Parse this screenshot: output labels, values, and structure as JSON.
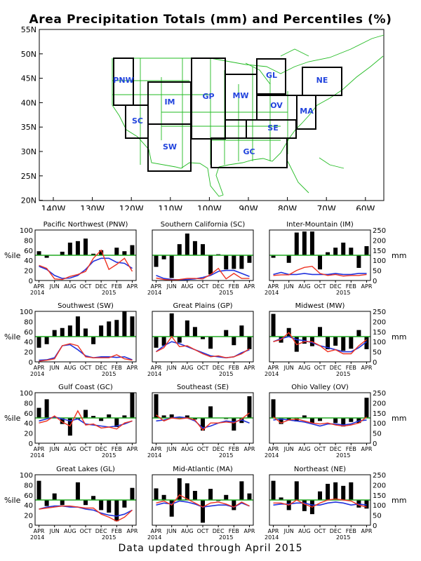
{
  "title": "Area Precipitation Totals (mm) and Percentiles (%)",
  "footer": "Data updated through April 2015",
  "map": {
    "lat_labels": [
      "55N",
      "50N",
      "45N",
      "40N",
      "35N",
      "30N",
      "25N",
      "20N"
    ],
    "lon_labels": [
      "140W",
      "130W",
      "120W",
      "110W",
      "100W",
      "90W",
      "80W",
      "70W",
      "60W"
    ],
    "region_labels": [
      "PNW",
      "SC",
      "IM",
      "SW",
      "GP",
      "MW",
      "GL",
      "OV",
      "SE",
      "GC",
      "NE",
      "MA"
    ],
    "label_color": "#2244dd",
    "outline_color": "#22bb22"
  },
  "chart_axes": {
    "left_label": "%ile",
    "right_label": "mm",
    "left_ticks": [
      "100",
      "80",
      "60",
      "40",
      "20",
      "0"
    ],
    "right_ticks": [
      "250",
      "200",
      "150",
      "100",
      "50",
      "0"
    ],
    "month_labels": [
      "APR",
      "JUN",
      "AUG",
      "OCT",
      "DEC",
      "FEB",
      "APR"
    ],
    "year_start": "2014",
    "year_mid": "2015"
  },
  "chart_data": [
    {
      "type": "bar",
      "title": "Pacific Northwest (PNW)",
      "ylim": [
        0,
        100
      ],
      "y2lim": [
        0,
        250
      ],
      "months": [
        "APR",
        "MAY",
        "JUN",
        "JUL",
        "AUG",
        "SEP",
        "OCT",
        "NOV",
        "DEC",
        "JAN",
        "FEB",
        "MAR",
        "APR"
      ],
      "percentiles": [
        58,
        45,
        50,
        57,
        75,
        78,
        83,
        53,
        60,
        50,
        65,
        58,
        70
      ],
      "total_mm": [
        75,
        60,
        8,
        5,
        20,
        30,
        45,
        110,
        150,
        55,
        80,
        110,
        45
      ],
      "normal_mm": [
        70,
        55,
        25,
        10,
        12,
        25,
        55,
        95,
        110,
        110,
        90,
        85,
        60
      ]
    },
    {
      "type": "bar",
      "title": "Southern California (SC)",
      "ylim": [
        0,
        100
      ],
      "y2lim": [
        0,
        250
      ],
      "months": [
        "APR",
        "MAY",
        "JUN",
        "JUL",
        "AUG",
        "SEP",
        "OCT",
        "NOV",
        "DEC",
        "JAN",
        "FEB",
        "MAR",
        "APR"
      ],
      "percentiles": [
        27,
        42,
        5,
        72,
        93,
        78,
        72,
        12,
        52,
        22,
        23,
        23,
        35
      ],
      "total_mm": [
        12,
        5,
        2,
        5,
        10,
        10,
        8,
        30,
        60,
        8,
        35,
        10,
        10
      ],
      "normal_mm": [
        25,
        10,
        5,
        3,
        5,
        8,
        15,
        25,
        45,
        50,
        50,
        35,
        20
      ]
    },
    {
      "type": "bar",
      "title": "Inter-Mountain (IM)",
      "ylim": [
        0,
        100
      ],
      "y2lim": [
        0,
        250
      ],
      "months": [
        "APR",
        "MAY",
        "JUN",
        "JUL",
        "AUG",
        "SEP",
        "OCT",
        "NOV",
        "DEC",
        "JAN",
        "FEB",
        "MAR",
        "APR"
      ],
      "percentiles": [
        45,
        50,
        35,
        95,
        97,
        97,
        22,
        56,
        65,
        75,
        65,
        25,
        68
      ],
      "total_mm": [
        25,
        28,
        28,
        50,
        65,
        70,
        35,
        25,
        30,
        22,
        25,
        25,
        30
      ],
      "normal_mm": [
        30,
        40,
        30,
        30,
        35,
        30,
        30,
        30,
        35,
        30,
        30,
        35,
        35
      ]
    },
    {
      "type": "bar",
      "title": "Southwest (SW)",
      "ylim": [
        0,
        100
      ],
      "y2lim": [
        0,
        250
      ],
      "months": [
        "APR",
        "MAY",
        "JUN",
        "JUL",
        "AUG",
        "SEP",
        "OCT",
        "NOV",
        "DEC",
        "JAN",
        "FEB",
        "MAR",
        "APR"
      ],
      "percentiles": [
        28,
        35,
        63,
        67,
        72,
        90,
        66,
        35,
        72,
        80,
        83,
        100,
        90
      ],
      "total_mm": [
        3,
        8,
        15,
        80,
        90,
        80,
        25,
        20,
        20,
        20,
        35,
        15,
        8
      ],
      "normal_mm": [
        8,
        10,
        20,
        80,
        85,
        60,
        30,
        20,
        25,
        25,
        22,
        25,
        10
      ]
    },
    {
      "type": "bar",
      "title": "Great Plains (GP)",
      "ylim": [
        0,
        100
      ],
      "y2lim": [
        0,
        250
      ],
      "months": [
        "APR",
        "MAY",
        "JUN",
        "JUL",
        "AUG",
        "SEP",
        "OCT",
        "NOV",
        "DEC",
        "JAN",
        "FEB",
        "MAR",
        "APR"
      ],
      "percentiles": [
        28,
        32,
        96,
        38,
        82,
        69,
        45,
        26,
        50,
        63,
        33,
        72,
        25
      ],
      "total_mm": [
        50,
        70,
        125,
        75,
        80,
        60,
        40,
        25,
        30,
        20,
        25,
        40,
        65
      ],
      "normal_mm": [
        50,
        80,
        100,
        90,
        75,
        60,
        45,
        30,
        25,
        20,
        25,
        45,
        60
      ]
    },
    {
      "type": "bar",
      "title": "Midwest (MW)",
      "ylim": [
        0,
        100
      ],
      "y2lim": [
        0,
        250
      ],
      "months": [
        "APR",
        "MAY",
        "JUN",
        "JUL",
        "AUG",
        "SEP",
        "OCT",
        "NOV",
        "DEC",
        "JAN",
        "FEB",
        "MAR",
        "APR"
      ],
      "percentiles": [
        95,
        38,
        67,
        20,
        36,
        31,
        69,
        25,
        32,
        22,
        26,
        63,
        25
      ],
      "total_mm": [
        100,
        110,
        145,
        85,
        100,
        100,
        80,
        50,
        60,
        40,
        40,
        80,
        110
      ],
      "normal_mm": [
        100,
        115,
        125,
        110,
        105,
        95,
        80,
        70,
        60,
        50,
        50,
        70,
        100
      ]
    },
    {
      "type": "bar",
      "title": "Gulf Coast (GC)",
      "ylim": [
        0,
        100
      ],
      "y2lim": [
        0,
        250
      ],
      "months": [
        "APR",
        "MAY",
        "JUN",
        "JUL",
        "AUG",
        "SEP",
        "OCT",
        "NOV",
        "DEC",
        "JAN",
        "FEB",
        "MAR",
        "APR"
      ],
      "percentiles": [
        70,
        87,
        52,
        38,
        15,
        47,
        66,
        54,
        44,
        57,
        32,
        55,
        100
      ],
      "total_mm": [
        100,
        110,
        135,
        105,
        85,
        160,
        90,
        95,
        75,
        80,
        70,
        100,
        110
      ],
      "normal_mm": [
        110,
        120,
        130,
        120,
        110,
        120,
        95,
        90,
        85,
        80,
        85,
        95,
        110
      ]
    },
    {
      "type": "bar",
      "title": "Southeast (SE)",
      "ylim": [
        0,
        100
      ],
      "y2lim": [
        0,
        250
      ],
      "months": [
        "APR",
        "MAY",
        "JUN",
        "JUL",
        "AUG",
        "SEP",
        "OCT",
        "NOV",
        "DEC",
        "JAN",
        "FEB",
        "MAR",
        "APR"
      ],
      "percentiles": [
        97,
        55,
        57,
        52,
        55,
        47,
        25,
        73,
        50,
        48,
        25,
        40,
        93
      ],
      "total_mm": [
        140,
        110,
        125,
        120,
        125,
        115,
        65,
        100,
        100,
        105,
        100,
        120,
        150
      ],
      "normal_mm": [
        110,
        115,
        125,
        130,
        125,
        110,
        75,
        85,
        100,
        110,
        105,
        115,
        100
      ]
    },
    {
      "type": "bar",
      "title": "Ohio Valley (OV)",
      "ylim": [
        0,
        100
      ],
      "y2lim": [
        0,
        250
      ],
      "months": [
        "APR",
        "MAY",
        "JUN",
        "JUL",
        "AUG",
        "SEP",
        "OCT",
        "NOV",
        "DEC",
        "JAN",
        "FEB",
        "MAR",
        "APR"
      ],
      "percentiles": [
        87,
        38,
        45,
        43,
        55,
        40,
        44,
        50,
        40,
        33,
        42,
        40,
        90
      ],
      "total_mm": [
        130,
        100,
        115,
        120,
        110,
        100,
        95,
        100,
        90,
        85,
        90,
        100,
        130
      ],
      "normal_mm": [
        115,
        120,
        115,
        110,
        105,
        95,
        85,
        95,
        95,
        90,
        95,
        110,
        115
      ]
    },
    {
      "type": "bar",
      "title": "Great Lakes (GL)",
      "ylim": [
        0,
        100
      ],
      "y2lim": [
        0,
        250
      ],
      "months": [
        "APR",
        "MAY",
        "JUN",
        "JUL",
        "AUG",
        "SEP",
        "OCT",
        "NOV",
        "DEC",
        "JAN",
        "FEB",
        "MAR",
        "APR"
      ],
      "percentiles": [
        88,
        38,
        63,
        40,
        50,
        85,
        40,
        58,
        30,
        25,
        8,
        35,
        74
      ],
      "total_mm": [
        80,
        85,
        90,
        95,
        95,
        90,
        85,
        85,
        55,
        40,
        20,
        40,
        75
      ],
      "normal_mm": [
        80,
        90,
        95,
        95,
        90,
        90,
        80,
        75,
        60,
        50,
        45,
        55,
        75
      ]
    },
    {
      "type": "bar",
      "title": "Mid-Atlantic (MA)",
      "ylim": [
        0,
        100
      ],
      "y2lim": [
        0,
        250
      ],
      "months": [
        "APR",
        "MAY",
        "JUN",
        "JUL",
        "AUG",
        "SEP",
        "OCT",
        "NOV",
        "DEC",
        "JAN",
        "FEB",
        "MAR",
        "APR"
      ],
      "percentiles": [
        73,
        60,
        17,
        93,
        83,
        68,
        5,
        72,
        48,
        60,
        30,
        87,
        63
      ],
      "total_mm": [
        110,
        120,
        100,
        150,
        130,
        110,
        90,
        110,
        115,
        105,
        90,
        115,
        95
      ],
      "normal_mm": [
        100,
        110,
        105,
        120,
        115,
        105,
        90,
        95,
        100,
        100,
        90,
        110,
        95
      ]
    },
    {
      "type": "bar",
      "title": "Northeast (NE)",
      "ylim": [
        0,
        100
      ],
      "y2lim": [
        0,
        250
      ],
      "months": [
        "APR",
        "MAY",
        "JUN",
        "JUL",
        "AUG",
        "SEP",
        "OCT",
        "NOV",
        "DEC",
        "JAN",
        "FEB",
        "MAR",
        "APR"
      ],
      "percentiles": [
        88,
        55,
        30,
        87,
        28,
        22,
        67,
        82,
        85,
        78,
        85,
        35,
        33
      ],
      "total_mm": [
        110,
        110,
        100,
        125,
        105,
        90,
        110,
        125,
        130,
        125,
        120,
        100,
        90
      ],
      "normal_mm": [
        100,
        105,
        105,
        110,
        110,
        100,
        100,
        110,
        115,
        110,
        100,
        105,
        100
      ]
    }
  ]
}
